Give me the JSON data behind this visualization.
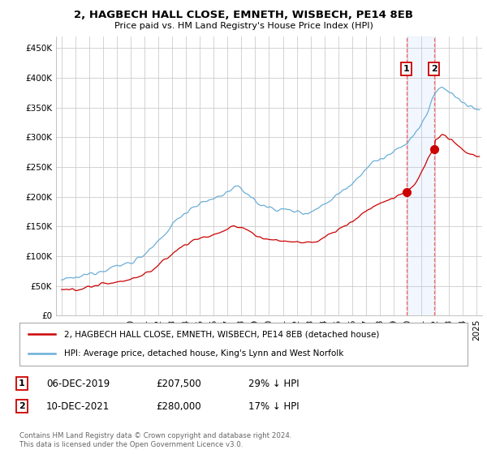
{
  "title": "2, HAGBECH HALL CLOSE, EMNETH, WISBECH, PE14 8EB",
  "subtitle": "Price paid vs. HM Land Registry's House Price Index (HPI)",
  "ylim": [
    0,
    470000
  ],
  "yticks": [
    0,
    50000,
    100000,
    150000,
    200000,
    250000,
    300000,
    350000,
    400000,
    450000
  ],
  "legend_line1": "2, HAGBECH HALL CLOSE, EMNETH, WISBECH, PE14 8EB (detached house)",
  "legend_line2": "HPI: Average price, detached house, King's Lynn and West Norfolk",
  "point1_label": "1",
  "point1_date": "06-DEC-2019",
  "point1_price": "£207,500",
  "point1_hpi": "29% ↓ HPI",
  "point1_x": 2019.92,
  "point1_y": 207500,
  "point2_label": "2",
  "point2_date": "10-DEC-2021",
  "point2_price": "£280,000",
  "point2_hpi": "17% ↓ HPI",
  "point2_x": 2021.92,
  "point2_y": 280000,
  "footer": "Contains HM Land Registry data © Crown copyright and database right 2024.\nThis data is licensed under the Open Government Licence v3.0.",
  "hpi_color": "#6baed6",
  "price_color": "#cc0000",
  "shade_color": "#ddeeff",
  "background_color": "#ffffff",
  "grid_color": "#cccccc",
  "xlim_left": 1994.6,
  "xlim_right": 2025.4
}
